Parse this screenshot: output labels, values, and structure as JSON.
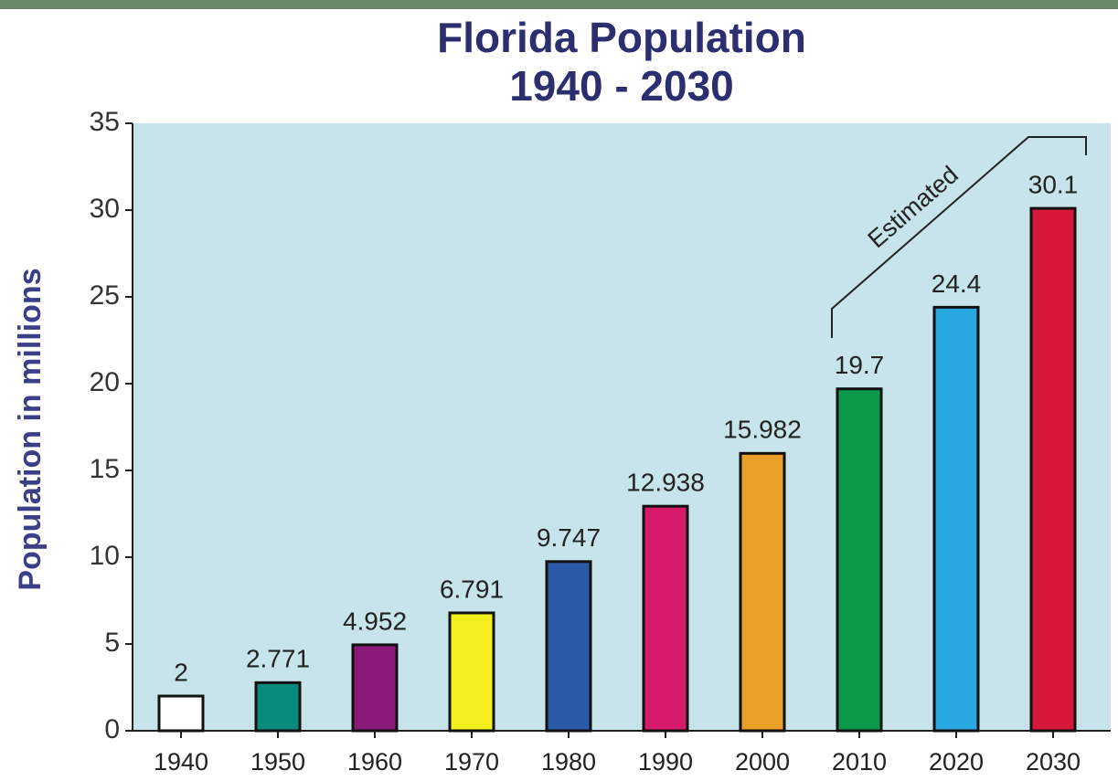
{
  "chart_data": {
    "type": "bar",
    "title": "Florida Population",
    "subtitle": "1940 - 2030",
    "y_label": "Population in millions",
    "categories": [
      "1940",
      "1950",
      "1960",
      "1970",
      "1980",
      "1990",
      "2000",
      "2010",
      "2020",
      "2030"
    ],
    "values": [
      2,
      2.771,
      4.952,
      6.791,
      9.747,
      12.938,
      15.982,
      19.7,
      24.4,
      30.1
    ],
    "colors": [
      "#ffffff",
      "#0a8a7a",
      "#8a1a78",
      "#f4f020",
      "#2a5aa8",
      "#d81a6a",
      "#e8a028",
      "#0a9a4a",
      "#28a8e0",
      "#d8183a"
    ],
    "annotation": "Estimated",
    "ylim": [
      0,
      35
    ],
    "yticks": [
      0,
      5,
      10,
      15,
      20,
      25,
      30,
      35
    ]
  }
}
